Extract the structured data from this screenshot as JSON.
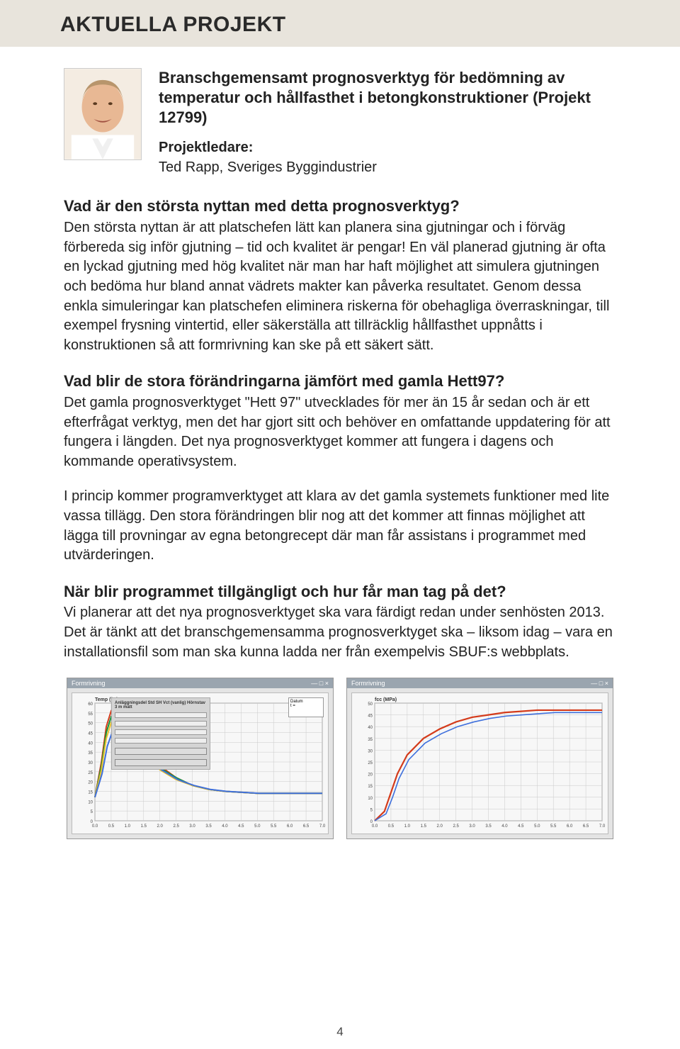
{
  "section_title": "AKTUELLA PROJEKT",
  "project": {
    "title": "Branschgemensamt prognosverktyg för bedömning av temperatur och hållfasthet i betongkonstruktioner (Projekt 12799)",
    "leader_label": "Projektledare:",
    "leader_name": "Ted Rapp, Sveriges Byggindustrier"
  },
  "q1": "Vad är den största nyttan med detta prognosverktyg?",
  "a1": "Den största nyttan är att platschefen lätt kan planera sina gjutningar och i förväg förbereda sig inför gjutning – tid och kvalitet är pengar! En väl planerad gjutning är ofta en lyckad gjutning med hög kvalitet när man har haft möjlighet att simulera gjutningen och bedöma hur bland annat vädrets makter kan påverka resultatet. Genom dessa enkla simuleringar kan platschefen eliminera riskerna för obehagliga överraskningar, till exempel frysning vintertid, eller säkerställa att tillräcklig hållfasthet uppnåtts i konstruktionen så att formrivning kan ske på ett säkert sätt.",
  "q2": "Vad blir de stora förändringarna jämfört med gamla Hett97?",
  "a2": "Det gamla prognosverktyget \"Hett 97\" utvecklades för mer än 15 år sedan och är ett efterfrågat verktyg, men det har gjort sitt och behöver en omfattande uppdatering för att fungera i längden. Det nya prognosverktyget kommer att fungera i dagens och kommande operativsystem.",
  "a2b": "I princip kommer programverktyget att klara av det gamla systemets funktioner med lite vassa tillägg. Den stora förändringen blir nog att det kommer att finnas möjlighet att lägga till provningar av egna betongrecept där man får assistans i programmet med utvärderingen.",
  "q3": "När blir programmet tillgängligt och hur får man tag på det?",
  "a3": "Vi planerar att det nya prognosverktyget ska vara färdigt redan under senhösten 2013. Det är tänkt att det branschgemensamma prognosverktyget ska – liksom idag – vara en installationsfil som man ska kunna ladda ner från exempelvis SBUF:s webbplats.",
  "page_number": "4",
  "portrait": {
    "bg_color": "#f4ece2",
    "skin": "#e8b894",
    "hair": "#b8956c",
    "shirt": "#ffffff",
    "mouth": "#a05040"
  },
  "chart_left": {
    "title_left": "Formrivning",
    "title_right": "",
    "y_label": "Temp (°C)",
    "x_max": 7.0,
    "y_max": 60,
    "grid_color": "#c9c9c9",
    "bg_color": "#f7f7f7",
    "series": [
      {
        "color": "#d43b1b",
        "width": 2,
        "x": [
          0,
          0.2,
          0.35,
          0.5,
          0.7,
          1.0,
          1.5,
          2.0,
          2.5,
          3.0,
          3.5,
          4.0,
          4.5,
          5.0,
          5.5,
          6.0,
          6.5,
          7.0
        ],
        "y": [
          12,
          30,
          48,
          56,
          54,
          46,
          36,
          28,
          22,
          18,
          16,
          15,
          14.5,
          14,
          14,
          14,
          14,
          14
        ]
      },
      {
        "color": "#16933a",
        "width": 2,
        "x": [
          0,
          0.2,
          0.35,
          0.5,
          0.7,
          1.0,
          1.5,
          2.0,
          2.5,
          3.0,
          3.5,
          4.0,
          4.5,
          5.0,
          5.5,
          6.0,
          6.5,
          7.0
        ],
        "y": [
          12,
          28,
          45,
          53,
          51,
          44,
          35,
          27,
          22,
          18,
          16,
          15,
          14.5,
          14,
          14,
          14,
          14,
          14
        ]
      },
      {
        "color": "#e9c12c",
        "width": 2,
        "x": [
          0,
          0.2,
          0.35,
          0.5,
          0.7,
          1.0,
          1.5,
          2.0,
          2.5,
          3.0,
          3.5,
          4.0,
          4.5,
          5.0,
          5.5,
          6.0,
          6.5,
          7.0
        ],
        "y": [
          12,
          26,
          42,
          50,
          48,
          42,
          34,
          26,
          21,
          18,
          16,
          15,
          14.5,
          14,
          14,
          14,
          14,
          14
        ]
      },
      {
        "color": "#3e6fdc",
        "width": 2,
        "x": [
          0,
          0.22,
          0.38,
          0.55,
          0.75,
          1.05,
          1.55,
          2.05,
          2.55,
          3.05,
          3.55,
          4.05,
          4.55,
          5.05,
          5.55,
          6.05,
          6.55,
          7.0
        ],
        "y": [
          12,
          24,
          38,
          46,
          45,
          40,
          33,
          26,
          21,
          18,
          16,
          15,
          14.5,
          14,
          14,
          14,
          14,
          14
        ]
      }
    ],
    "panel_header": "Anläggningsdel  Std SH Vct (vanlig)  Hörnstav  3 m mått"
  },
  "chart_right": {
    "title_left": "Formrivning",
    "title_right": "",
    "y_label": "fcc (MPa)",
    "x_max": 7.0,
    "y_max": 50,
    "grid_color": "#c9c9c9",
    "bg_color": "#f7f7f7",
    "series": [
      {
        "color": "#d43b1b",
        "width": 2.2,
        "x": [
          0,
          0.3,
          0.5,
          0.7,
          1.0,
          1.5,
          2.0,
          2.5,
          3.0,
          3.5,
          4.0,
          4.5,
          5.0,
          5.5,
          6.0,
          6.5,
          7.0
        ],
        "y": [
          0,
          4,
          12,
          20,
          28,
          35,
          39,
          42,
          44,
          45,
          46,
          46.5,
          47,
          47,
          47,
          47,
          47
        ]
      },
      {
        "color": "#3e6fdc",
        "width": 1.6,
        "x": [
          0,
          0.35,
          0.55,
          0.75,
          1.05,
          1.55,
          2.05,
          2.55,
          3.05,
          3.55,
          4.05,
          4.55,
          5.05,
          5.55,
          6.05,
          6.55,
          7.0
        ],
        "y": [
          0,
          3,
          10,
          18,
          26,
          33,
          37,
          40,
          42,
          43.5,
          44.5,
          45,
          45.5,
          46,
          46,
          46,
          46
        ]
      }
    ]
  }
}
